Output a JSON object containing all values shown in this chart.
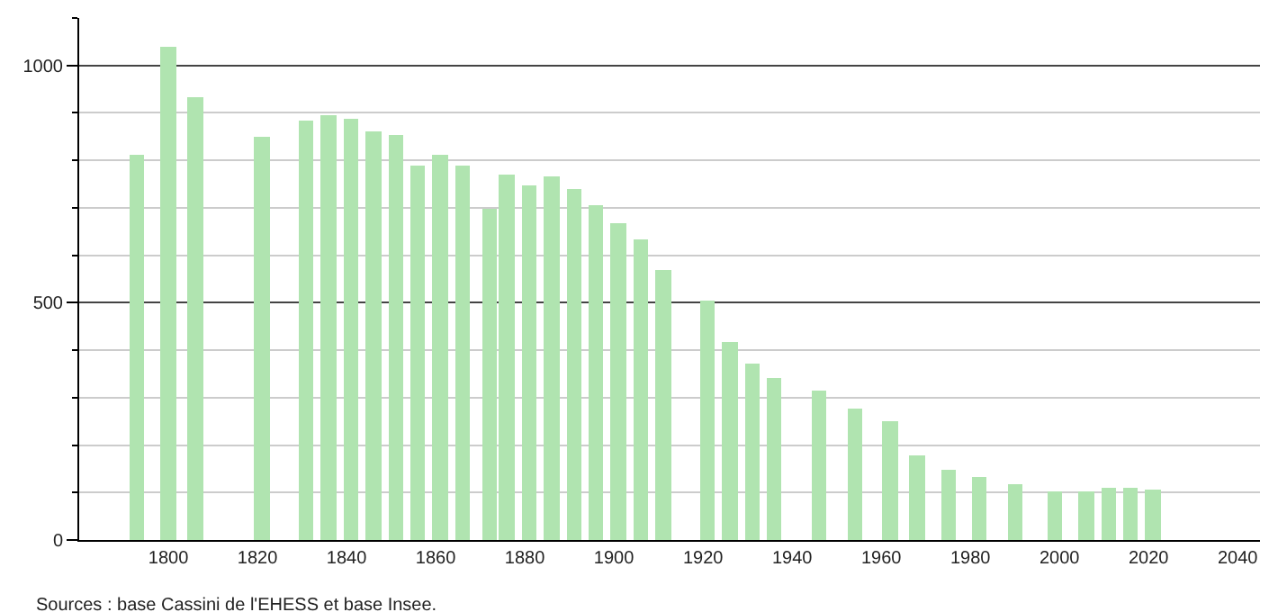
{
  "chart_data": {
    "type": "bar",
    "x": [
      1793,
      1800,
      1806,
      1821,
      1831,
      1836,
      1841,
      1846,
      1851,
      1856,
      1861,
      1866,
      1872,
      1876,
      1881,
      1886,
      1891,
      1896,
      1901,
      1906,
      1911,
      1921,
      1926,
      1931,
      1936,
      1946,
      1954,
      1962,
      1968,
      1975,
      1982,
      1990,
      1999,
      2006,
      2011,
      2016,
      2021
    ],
    "values": [
      810,
      1039,
      932,
      848,
      884,
      895,
      888,
      861,
      853,
      790,
      810,
      790,
      698,
      770,
      747,
      765,
      739,
      704,
      667,
      632,
      568,
      504,
      419,
      373,
      343,
      316,
      277,
      250,
      179,
      149,
      133,
      118,
      103,
      103,
      110,
      109,
      106
    ],
    "color": "#b0e4b0",
    "xlim": [
      1780,
      2045
    ],
    "xticks": [
      1800,
      1820,
      1840,
      1860,
      1880,
      1900,
      1920,
      1940,
      1960,
      1980,
      2000,
      2020,
      2040
    ],
    "ylim": [
      0,
      1100
    ],
    "yticks": [
      0,
      500,
      1000
    ],
    "grid": "y",
    "annotations": [
      "Sources : base Cassini de l'EHESS et base Insee."
    ]
  }
}
